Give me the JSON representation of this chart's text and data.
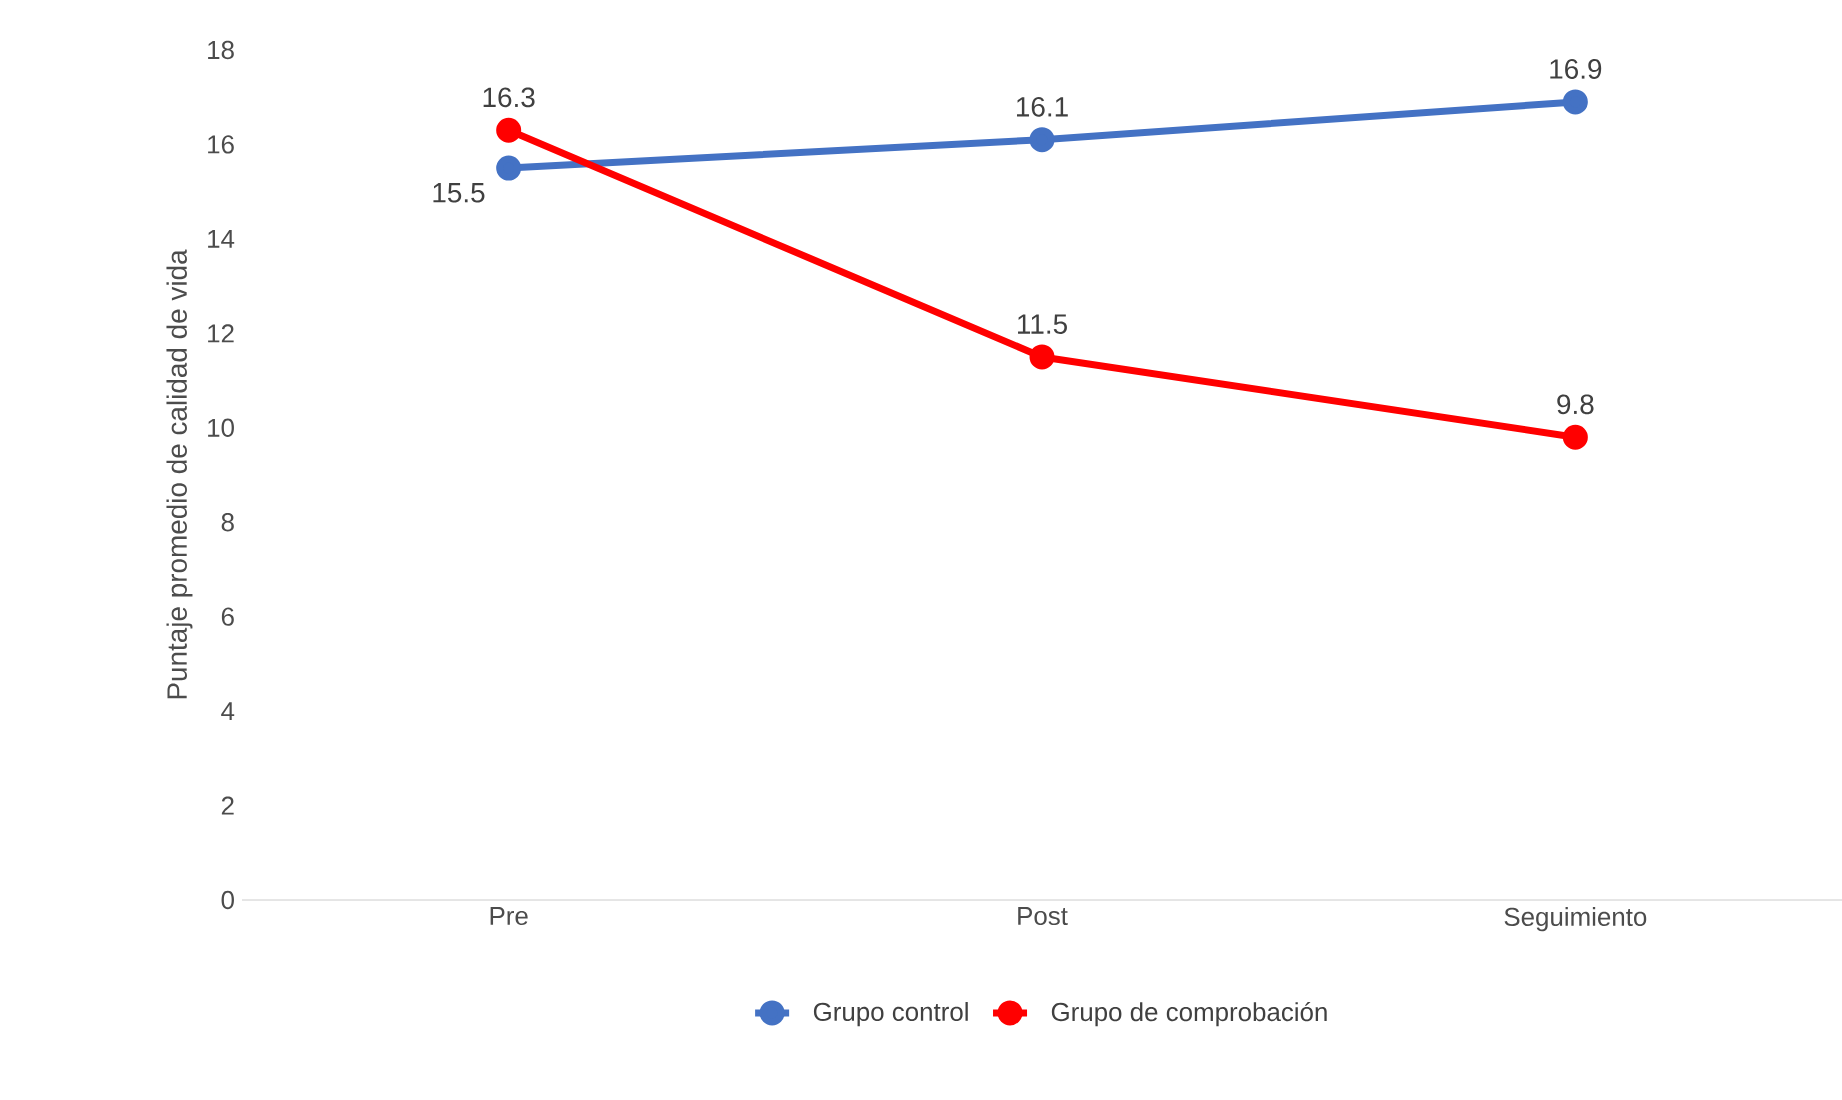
{
  "chart_data": {
    "type": "line",
    "ylabel": "Puntaje promedio de calidad de vida",
    "categories": [
      "Pre",
      "Post",
      "Seguimiento"
    ],
    "series": [
      {
        "name": "Grupo control",
        "color": "#4472c4",
        "values": [
          15.5,
          16.1,
          16.9
        ]
      },
      {
        "name": "Grupo de comprobación",
        "color": "#ff0000",
        "values": [
          16.3,
          11.5,
          9.8
        ]
      }
    ],
    "ylim": [
      0,
      18
    ],
    "yticks": [
      0,
      2,
      4,
      6,
      8,
      10,
      12,
      14,
      16,
      18
    ],
    "data_labels": true,
    "legend": "bottom",
    "marker": "circle",
    "line_style": "solid",
    "grid": false
  }
}
